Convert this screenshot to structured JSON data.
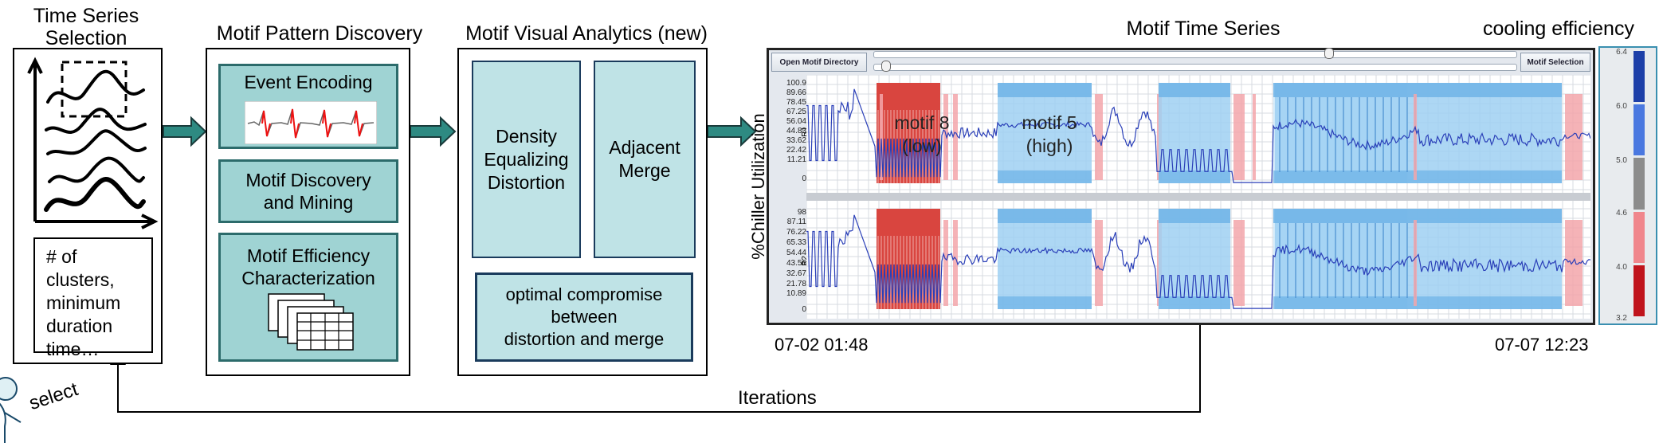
{
  "stages": {
    "selection": {
      "title": "Time Series\nSelection",
      "params": "# of\nclusters,\nminimum\nduration\ntime…"
    },
    "discovery": {
      "title": "Motif Pattern Discovery",
      "step1": "Event Encoding",
      "step2": "Motif  Discovery\nand Mining",
      "step3": "Motif Efficiency\nCharacterization"
    },
    "analytics": {
      "title": "Motif Visual Analytics (new)",
      "step1": "Density\nEqualizing\nDistortion",
      "step2": "Adjacent\nMerge",
      "step3": "optimal  compromise\nbetween\ndistortion and merge"
    }
  },
  "user": {
    "action": "select"
  },
  "feedback": {
    "label": "Iterations"
  },
  "motif_view": {
    "title": "Motif Time Series",
    "buttons": {
      "open": "Open Motif Directory",
      "selection": "Motif Selection"
    },
    "ylabel": "%Chiller Utilization",
    "rows": [
      {
        "name": "R1",
        "ticks": [
          "100.9",
          "89.66",
          "78.45",
          "67.25",
          "56.04",
          "44.83",
          "33.62",
          "22.42",
          "11.21",
          "0"
        ]
      },
      {
        "name": "R2",
        "ticks": [
          "98",
          "87.11",
          "76.22",
          "65.33",
          "54.44",
          "43.56",
          "32.67",
          "21.78",
          "10.89",
          "0"
        ]
      }
    ],
    "motifs": [
      {
        "label": "motif 8\n(low)",
        "color": "#d9453f"
      },
      {
        "label": "motif 5\n(high)",
        "color": "#9fd0f2"
      }
    ],
    "time_start": "07-02 01:48",
    "time_end": "07-07 12:23"
  },
  "colorbar": {
    "title": "cooling efficiency",
    "ticks": [
      "6.4",
      "6.0",
      "5.0",
      "4.6",
      "4.0",
      "3.2"
    ],
    "colors": [
      "#1d3fa8",
      "#4a78e0",
      "#8c8c8c",
      "#f0868c",
      "#c0141c"
    ]
  }
}
